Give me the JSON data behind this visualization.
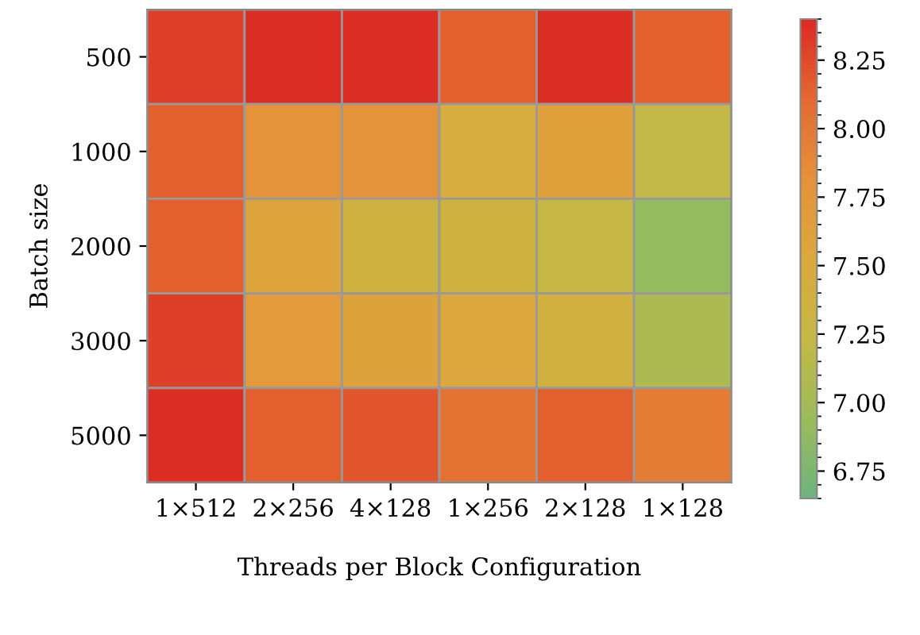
{
  "chart_data": {
    "type": "heatmap",
    "xlabel": "Threads per Block Configuration",
    "ylabel": "Batch size",
    "categories": [
      "1×512",
      "2×256",
      "4×128",
      "1×256",
      "2×128",
      "1×128"
    ],
    "y_categories": [
      "500",
      "1000",
      "2000",
      "3000",
      "5000"
    ],
    "cells": [
      [
        8.3,
        8.38,
        8.38,
        8.15,
        8.38,
        8.15
      ],
      [
        8.15,
        7.8,
        7.8,
        7.45,
        7.65,
        7.2
      ],
      [
        8.15,
        7.6,
        7.35,
        7.35,
        7.25,
        6.9
      ],
      [
        8.3,
        7.72,
        7.62,
        7.55,
        7.4,
        7.05
      ],
      [
        8.38,
        8.15,
        8.2,
        8.05,
        8.15,
        7.97
      ]
    ],
    "clim": [
      6.65,
      8.4
    ],
    "cticks": [
      6.75,
      {
        "value": 7,
        "label": "7.00"
      },
      7.25,
      {
        "value": 7.5,
        "label": "7.50"
      },
      7.75,
      {
        "value": 8,
        "label": "8.00"
      },
      8.25
    ]
  }
}
